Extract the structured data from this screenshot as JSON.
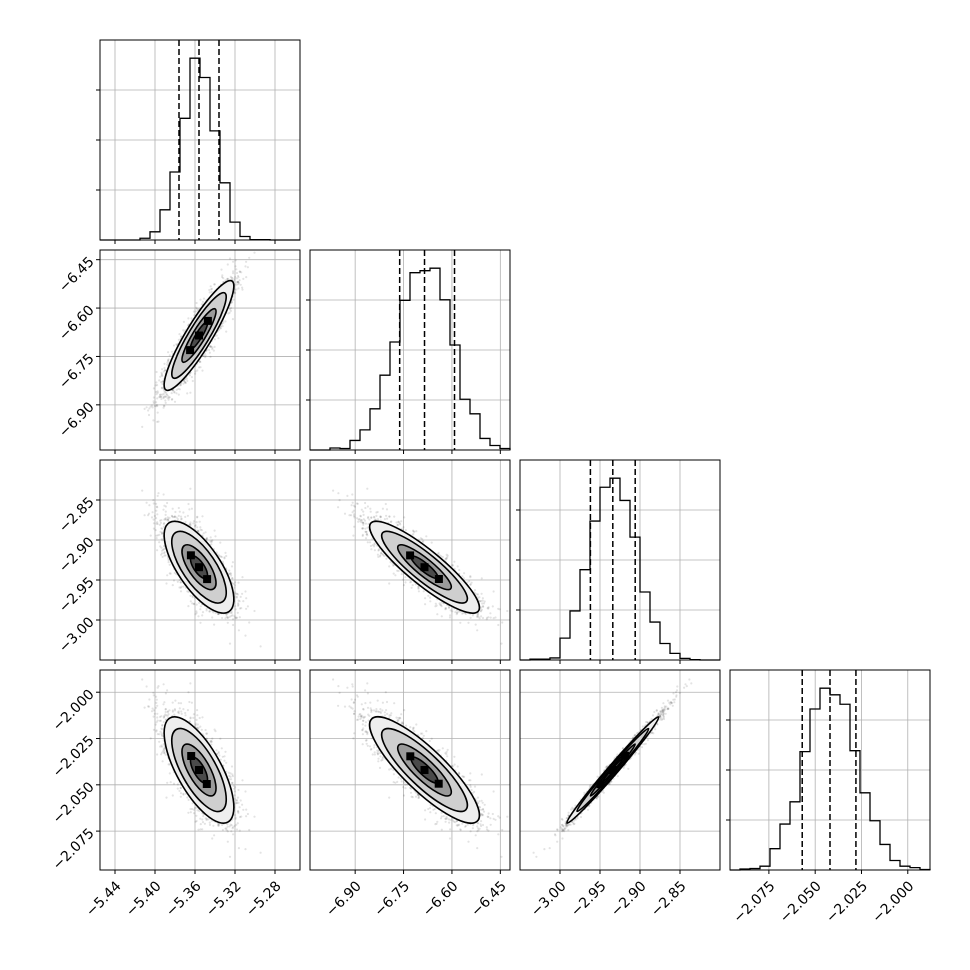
{
  "colors": {
    "ink": "#000000",
    "grid": "#b0b0b0",
    "background": "#ffffff"
  },
  "chart_data": {
    "type": "corner",
    "grid": true,
    "parameters": [
      {
        "median": -5.356,
        "std": 0.017,
        "lo": -5.376,
        "hi": -5.336,
        "range": [
          -5.455,
          -5.255
        ],
        "ticks": [
          "−5.44",
          "−5.40",
          "−5.36",
          "−5.32",
          "−5.28"
        ]
      },
      {
        "median": -6.685,
        "std": 0.083,
        "lo": -6.762,
        "hi": -6.592,
        "range": [
          -7.04,
          -6.42
        ],
        "ticks": [
          "−6.90",
          "−6.75",
          "−6.60",
          "−6.45"
        ]
      },
      {
        "median": -2.934,
        "std": 0.028,
        "lo": -2.962,
        "hi": -2.906,
        "range": [
          -3.05,
          -2.8
        ],
        "ticks": [
          "−3.00",
          "−2.95",
          "−2.90",
          "−2.85"
        ]
      },
      {
        "median": -2.042,
        "std": 0.014,
        "lo": -2.057,
        "hi": -2.028,
        "range": [
          -2.096,
          -1.988
        ],
        "ticks": [
          "−2.075",
          "−2.050",
          "−2.025",
          "−2.000"
        ]
      }
    ],
    "correlations": [
      [
        1.0,
        0.9,
        -0.7,
        -0.7
      ],
      [
        0.9,
        1.0,
        -0.88,
        -0.85
      ],
      [
        -0.7,
        -0.88,
        1.0,
        0.99
      ],
      [
        -0.7,
        -0.85,
        0.99,
        1.0
      ]
    ],
    "quantiles": [
      0.16,
      0.5,
      0.84
    ],
    "histogram_bins": 20
  }
}
